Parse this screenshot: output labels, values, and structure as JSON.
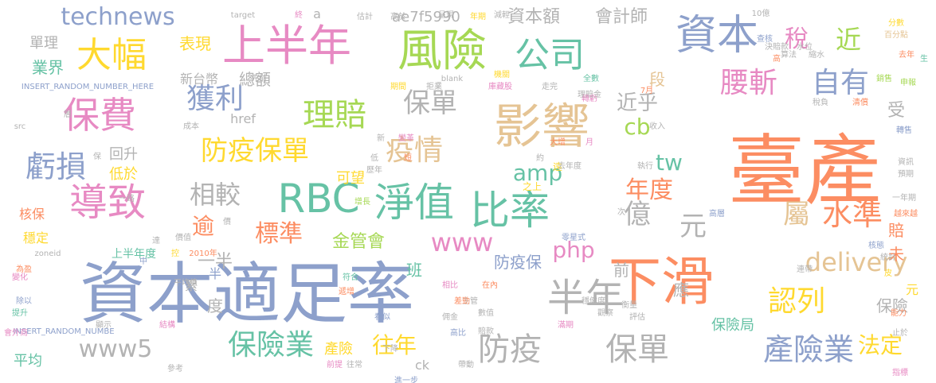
{
  "palette": {
    "green": "#66c2a5",
    "orange": "#fc8d62",
    "blue": "#8da0cb",
    "pink": "#e78ac3",
    "lime": "#a6d854",
    "yellow": "#ffd92f",
    "tan": "#e5c494",
    "gray": "#b3b3b3"
  },
  "words": [
    "臺產",
    "資本適足率",
    "下滑",
    "影響",
    "風險",
    "上半年",
    "資本",
    "RBC",
    "淨值",
    "比率",
    "導致",
    "保費",
    "大幅",
    "公司",
    "理賠",
    "虧損",
    "獲利",
    "防疫保單",
    "疫情",
    "保單",
    "半年",
    "防疫",
    "保單",
    "產險業",
    "保險業",
    "水準",
    "屬",
    "認列",
    "腰斬",
    "自有",
    "technews",
    "www",
    "www5",
    "delivery",
    "相較",
    "億",
    "元",
    "近",
    "稅",
    "標準",
    "年度",
    "amp",
    "php",
    "tw",
    "cb",
    "往年",
    "法定",
    "金管會",
    "逾",
    "近乎",
    "資本額",
    "會計師",
    "表現",
    "總額",
    "業界",
    "單理",
    "回升",
    "低於",
    "可望",
    "一半",
    "班",
    "防疫保",
    "前",
    "應",
    "保險局",
    "保險",
    "產險",
    "ck",
    "平均",
    "核保",
    "穩定",
    "上半年度",
    "度",
    "累",
    "半",
    "段",
    "賠",
    "未",
    "受",
    "元",
    "ae7f5990",
    "新台幣",
    "a",
    "INSERT_RANDOM_NUMBER_HERE",
    "INSERT_RANDOM_NUMBE",
    "href",
    "src",
    "zoneid",
    "target",
    "_blank",
    "10億",
    "7月",
    "2010年",
    "全數",
    "年期",
    "高比",
    "成本",
    "先前",
    "遠",
    "之上",
    "去年",
    "去年度",
    "歷年",
    "收入",
    "執行",
    "轉售",
    "資訊",
    "預期",
    "一年期",
    "越來越",
    "高層",
    "零星式",
    "指標",
    "止於",
    "能力",
    "皮",
    "統計",
    "連帶",
    "核態",
    "主管",
    "佣金",
    "賠款",
    "數值",
    "相比",
    "在內",
    "滿期",
    "穩健度",
    "衡量",
    "觀察",
    "評估",
    "會外商",
    "為盈",
    "變化",
    "除以",
    "提升",
    "顯示",
    "結構",
    "參考",
    "前提",
    "帶動",
    "進一步",
    "往常",
    "分數",
    "百分點",
    "決賠款",
    "算法",
    "水位",
    "縮水",
    "查核",
    "高",
    "生",
    "銷售",
    "申報",
    "清償",
    "稅負",
    "呈現",
    "估計",
    "高於",
    "減輕",
    "終",
    "機關",
    "庫藏股",
    "走完",
    "期間",
    "拒業",
    "轉虧",
    "理賠金",
    "變革",
    "大增",
    "月",
    "次",
    "約",
    "新",
    "低",
    "短",
    "下降",
    "看似",
    "差勁",
    "遞增",
    "符合",
    "增長",
    "價值",
    "價",
    "控",
    "中",
    "層",
    "保",
    "一路",
    "達",
    "平均值"
  ]
}
